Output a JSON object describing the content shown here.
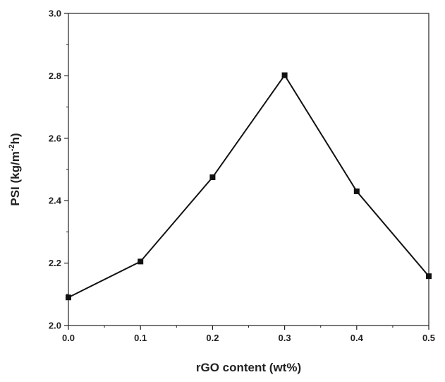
{
  "chart_data": {
    "type": "line",
    "title": "",
    "xlabel": "rGO content (wt%)",
    "ylabel": {
      "main": "PSI (kg/m",
      "superscript": "-2",
      "tail": "h)"
    },
    "x": [
      0.0,
      0.1,
      0.2,
      0.3,
      0.4,
      0.5
    ],
    "series": [
      {
        "values": [
          2.09,
          2.205,
          2.475,
          2.802,
          2.43,
          2.158
        ],
        "color": "#111111",
        "marker": "square"
      }
    ],
    "xlim": [
      0.0,
      0.5
    ],
    "ylim": [
      2.0,
      3.0
    ],
    "xticks": [
      "0.0",
      "0.1",
      "0.2",
      "0.3",
      "0.4",
      "0.5"
    ],
    "yticks": [
      "2.0",
      "2.2",
      "2.4",
      "2.6",
      "2.8",
      "3.0"
    ],
    "x_minor_ticks": [
      0.05,
      0.15,
      0.25,
      0.35,
      0.45
    ],
    "y_minor_ticks": [
      2.1,
      2.3,
      2.5,
      2.7,
      2.9
    ],
    "grid": false,
    "legend": "none"
  }
}
